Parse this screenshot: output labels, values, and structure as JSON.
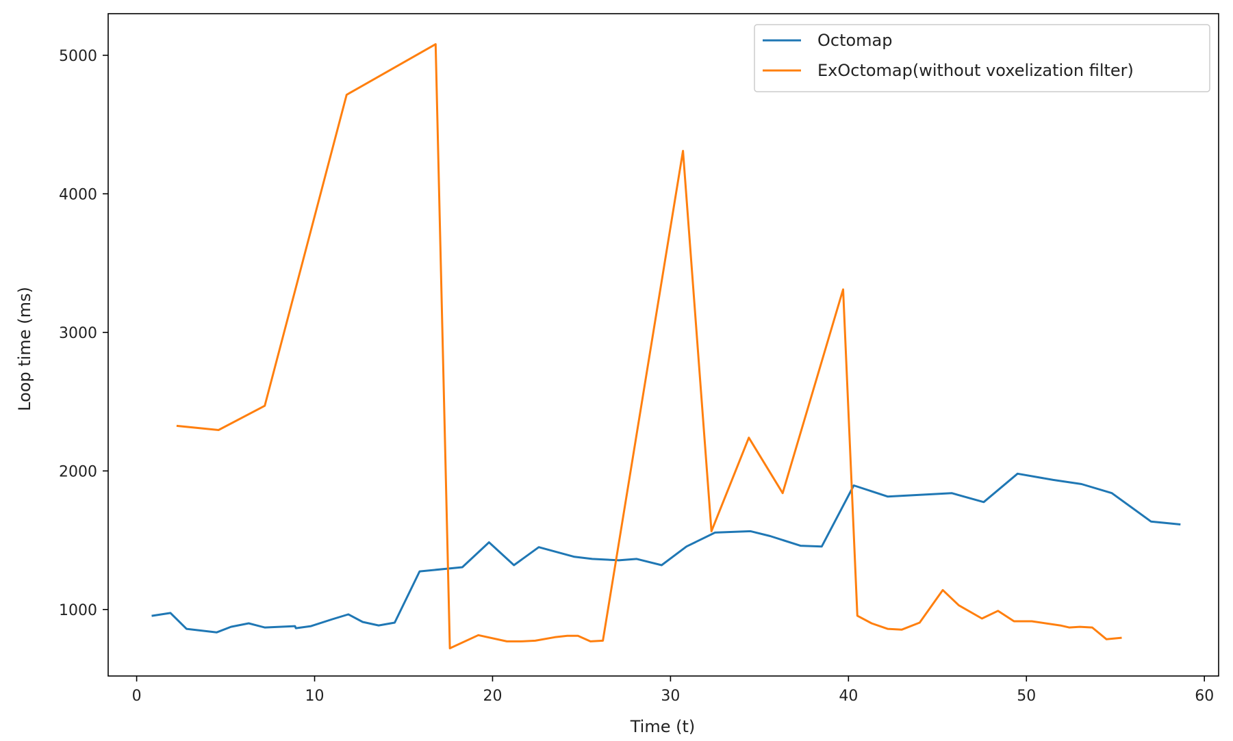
{
  "chart_data": {
    "type": "line",
    "title": "",
    "xlabel": "Time (t)",
    "ylabel": "Loop time (ms)",
    "xlim": [
      -1.6,
      60.8
    ],
    "ylim": [
      520,
      5300
    ],
    "xticks": [
      0,
      10,
      20,
      30,
      40,
      50,
      60
    ],
    "yticks": [
      1000,
      2000,
      3000,
      4000,
      5000
    ],
    "grid": false,
    "legend_position": "top-right",
    "series": [
      {
        "name": "Octomap",
        "color": "#1f77b4",
        "points": [
          [
            0.9,
            955
          ],
          [
            1.9,
            975
          ],
          [
            2.8,
            860
          ],
          [
            4.5,
            835
          ],
          [
            5.3,
            875
          ],
          [
            6.3,
            900
          ],
          [
            7.2,
            870
          ],
          [
            8.9,
            880
          ],
          [
            8.95,
            865
          ],
          [
            9.8,
            880
          ],
          [
            11.0,
            930
          ],
          [
            11.9,
            965
          ],
          [
            12.7,
            910
          ],
          [
            13.6,
            885
          ],
          [
            14.5,
            905
          ],
          [
            15.9,
            1275
          ],
          [
            18.3,
            1305
          ],
          [
            19.8,
            1485
          ],
          [
            21.2,
            1320
          ],
          [
            22.6,
            1450
          ],
          [
            24.6,
            1380
          ],
          [
            25.6,
            1365
          ],
          [
            27.1,
            1355
          ],
          [
            28.1,
            1365
          ],
          [
            29.5,
            1320
          ],
          [
            30.9,
            1455
          ],
          [
            32.5,
            1555
          ],
          [
            34.5,
            1565
          ],
          [
            35.6,
            1530
          ],
          [
            37.3,
            1460
          ],
          [
            38.5,
            1455
          ],
          [
            40.3,
            1895
          ],
          [
            42.2,
            1815
          ],
          [
            45.8,
            1840
          ],
          [
            47.6,
            1775
          ],
          [
            49.5,
            1980
          ],
          [
            51.5,
            1935
          ],
          [
            53.1,
            1905
          ],
          [
            54.8,
            1840
          ],
          [
            57.0,
            1635
          ],
          [
            58.6,
            1615
          ]
        ]
      },
      {
        "name": "ExOctomap(without voxelization filter)",
        "color": "#ff7f0e",
        "points": [
          [
            2.3,
            2325
          ],
          [
            4.6,
            2295
          ],
          [
            7.2,
            2470
          ],
          [
            11.8,
            4715
          ],
          [
            16.8,
            5080
          ],
          [
            17.6,
            720
          ],
          [
            19.2,
            815
          ],
          [
            20.8,
            770
          ],
          [
            21.6,
            770
          ],
          [
            22.4,
            775
          ],
          [
            23.5,
            800
          ],
          [
            24.2,
            810
          ],
          [
            24.8,
            810
          ],
          [
            25.5,
            770
          ],
          [
            26.2,
            775
          ],
          [
            30.7,
            4310
          ],
          [
            32.3,
            1565
          ],
          [
            34.4,
            2240
          ],
          [
            36.3,
            1840
          ],
          [
            39.7,
            3310
          ],
          [
            40.5,
            955
          ],
          [
            41.3,
            900
          ],
          [
            42.2,
            860
          ],
          [
            43.0,
            855
          ],
          [
            44.0,
            905
          ],
          [
            45.3,
            1140
          ],
          [
            46.2,
            1030
          ],
          [
            47.5,
            935
          ],
          [
            48.4,
            990
          ],
          [
            49.3,
            915
          ],
          [
            50.3,
            915
          ],
          [
            51.9,
            885
          ],
          [
            52.4,
            870
          ],
          [
            53.0,
            875
          ],
          [
            53.7,
            870
          ],
          [
            54.5,
            785
          ],
          [
            55.3,
            795
          ]
        ]
      }
    ]
  }
}
